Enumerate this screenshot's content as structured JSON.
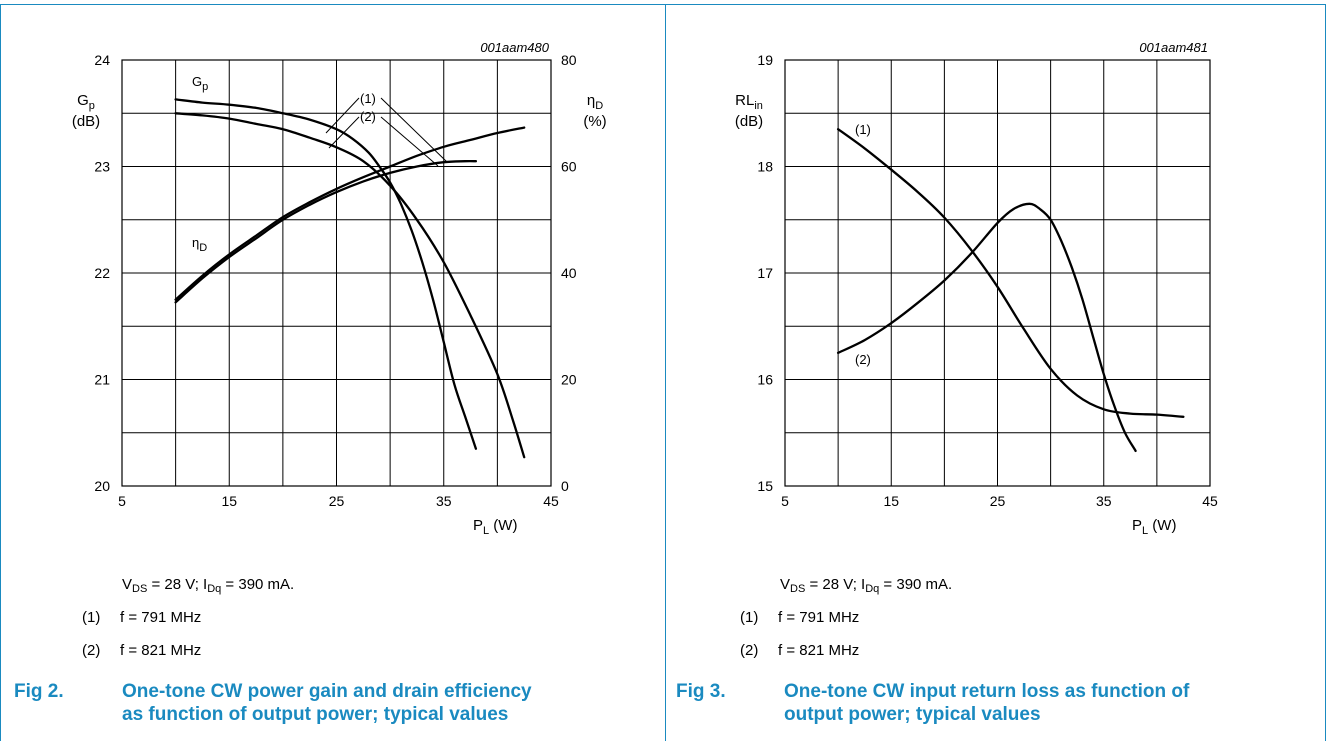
{
  "figures": [
    {
      "fig_number": "Fig 2.",
      "caption_line1": "One-tone CW power gain and drain efficiency",
      "caption_line2": "as function of output power; typical values",
      "conditions": [
        "V",
        "DS",
        " = 28 V; I",
        "Dq",
        " = 390 mA."
      ],
      "legend_items": [
        {
          "num": "(1)",
          "text": "f = 791 MHz"
        },
        {
          "num": "(2)",
          "text": "f = 821 MHz"
        }
      ]
    },
    {
      "fig_number": "Fig 3.",
      "caption_line1": "One-tone CW input return loss as function of",
      "caption_line2": "output power; typical values",
      "conditions": [
        "V",
        "DS",
        " = 28 V; I",
        "Dq",
        " = 390 mA."
      ],
      "legend_items": [
        {
          "num": "(1)",
          "text": "f = 791 MHz"
        },
        {
          "num": "(2)",
          "text": "f = 821 MHz"
        }
      ]
    }
  ],
  "chart_data": [
    {
      "type": "line",
      "code": "001aam480",
      "grid": true,
      "x_label": {
        "main": "P",
        "sub": "L",
        "unit": " (W)"
      },
      "x_ticks": [
        "5",
        "15",
        "25",
        "35",
        "45"
      ],
      "xlim": [
        5,
        45
      ],
      "ylim": [
        20,
        24
      ],
      "y_ticks": [
        "20",
        "21",
        "22",
        "23",
        "24"
      ],
      "y_label": {
        "main": "G",
        "sub": "p",
        "unit": "(dB)"
      },
      "y2lim": [
        0,
        80
      ],
      "y2_ticks": [
        "0",
        "20",
        "40",
        "60",
        "80"
      ],
      "y2_label": {
        "main": "η",
        "sub": "D",
        "unit": "(%)"
      },
      "curve_labels": {
        "gain": {
          "main": "G",
          "sub": "p"
        },
        "eff": {
          "main": "η",
          "sub": "D"
        },
        "n1": "(1)",
        "n2": "(2)"
      },
      "series": [
        {
          "group": "gain",
          "ref": "(1)",
          "axis": "left",
          "x": [
            10,
            12.5,
            15,
            17.5,
            20,
            22.5,
            25,
            26.5,
            28,
            29,
            30,
            31,
            32,
            33,
            34,
            35,
            36,
            37,
            38
          ],
          "y": [
            23.63,
            23.6,
            23.58,
            23.55,
            23.5,
            23.44,
            23.35,
            23.26,
            23.13,
            23.0,
            22.85,
            22.65,
            22.4,
            22.1,
            21.75,
            21.35,
            20.95,
            20.65,
            20.35
          ]
        },
        {
          "group": "gain",
          "ref": "(2)",
          "axis": "left",
          "x": [
            10,
            12.5,
            15,
            17.5,
            20,
            22.5,
            25,
            27.5,
            30,
            32.5,
            35,
            37.5,
            40,
            41.5,
            42.5
          ],
          "y": [
            23.5,
            23.48,
            23.45,
            23.4,
            23.35,
            23.27,
            23.18,
            23.05,
            22.82,
            22.5,
            22.1,
            21.6,
            21.05,
            20.6,
            20.27
          ]
        },
        {
          "group": "eff",
          "ref": "(1)",
          "axis": "right",
          "x": [
            10,
            12.5,
            15,
            17.5,
            20,
            22.5,
            25,
            27.5,
            30,
            32.5,
            35,
            37.5,
            40,
            42.5
          ],
          "y": [
            35,
            39.5,
            43.5,
            47,
            50.5,
            53.3,
            55.8,
            58,
            60,
            62,
            63.7,
            65,
            66.3,
            67.3
          ]
        },
        {
          "group": "eff",
          "ref": "(2)",
          "axis": "right",
          "x": [
            10,
            12.5,
            15,
            17.5,
            20,
            22.5,
            25,
            27.5,
            30,
            32.5,
            35,
            37,
            38
          ],
          "y": [
            34.5,
            39,
            43,
            46.5,
            50,
            52.8,
            55.2,
            57.2,
            58.8,
            60,
            60.8,
            61,
            61
          ]
        }
      ]
    },
    {
      "type": "line",
      "code": "001aam481",
      "grid": true,
      "x_label": {
        "main": "P",
        "sub": "L",
        "unit": " (W)"
      },
      "x_ticks": [
        "5",
        "15",
        "25",
        "35",
        "45"
      ],
      "xlim": [
        5,
        45
      ],
      "ylim": [
        15,
        19
      ],
      "y_ticks": [
        "15",
        "16",
        "17",
        "18",
        "19"
      ],
      "y_label": {
        "main": "RL",
        "sub": "in",
        "unit": "(dB)"
      },
      "curve_labels": {
        "n1": "(1)",
        "n2": "(2)"
      },
      "series": [
        {
          "ref": "(1)",
          "x": [
            10,
            12.5,
            15,
            17.5,
            20,
            22.5,
            25,
            27.5,
            30,
            32.5,
            35,
            37.5,
            40,
            42.5
          ],
          "y": [
            18.35,
            18.17,
            17.97,
            17.76,
            17.52,
            17.22,
            16.87,
            16.47,
            16.1,
            15.85,
            15.72,
            15.68,
            15.67,
            15.65
          ]
        },
        {
          "ref": "(2)",
          "x": [
            10,
            12.5,
            15,
            17.5,
            20,
            22.5,
            25,
            26.5,
            28,
            29,
            30,
            31,
            32,
            33,
            34,
            35,
            36,
            37,
            38
          ],
          "y": [
            16.25,
            16.37,
            16.53,
            16.72,
            16.93,
            17.18,
            17.47,
            17.6,
            17.65,
            17.6,
            17.5,
            17.3,
            17.05,
            16.75,
            16.4,
            16.05,
            15.75,
            15.5,
            15.33
          ]
        }
      ]
    }
  ]
}
